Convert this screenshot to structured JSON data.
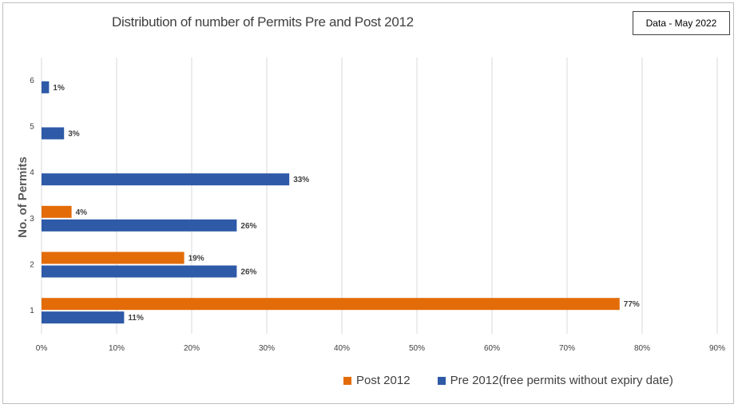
{
  "note": "Data - May 2022",
  "chart_data": {
    "type": "bar",
    "orientation": "horizontal",
    "title": "Distribution of number of Permits Pre and Post 2012",
    "xlabel": "",
    "ylabel": "No. of Permits",
    "categories": [
      "1",
      "2",
      "3",
      "4",
      "5",
      "6"
    ],
    "xlim": [
      0,
      90
    ],
    "xticks": [
      "0%",
      "10%",
      "20%",
      "30%",
      "40%",
      "50%",
      "60%",
      "70%",
      "80%",
      "90%"
    ],
    "grid": true,
    "legend_position": "bottom",
    "series": [
      {
        "name": "Post 2012",
        "color": "#e36c09",
        "values": [
          77,
          19,
          4,
          null,
          null,
          null
        ],
        "labels": [
          "77%",
          "19%",
          "4%",
          "",
          "",
          ""
        ]
      },
      {
        "name": "Pre 2012(free permits without expiry date)",
        "color": "#2e5aa7",
        "values": [
          11,
          26,
          26,
          33,
          3,
          1
        ],
        "labels": [
          "11%",
          "26%",
          "26%",
          "33%",
          "3%",
          "1%"
        ]
      }
    ]
  }
}
